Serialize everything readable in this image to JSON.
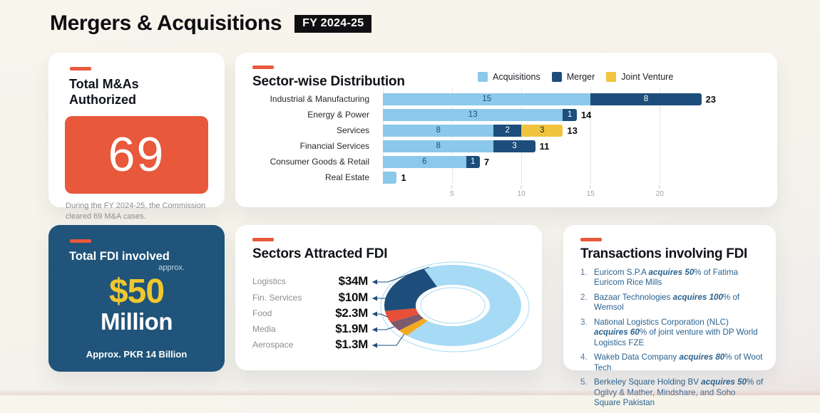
{
  "page": {
    "title": "Mergers & Acquisitions",
    "badge": "FY 2024-25"
  },
  "colors": {
    "accent_orange": "#E8583B",
    "card_blue": "#20547A",
    "money_yellow": "#EFC72F",
    "acquisitions_blue": "#8BC8EB",
    "merger_navy": "#1D4E7B",
    "joint_venture_yellow": "#F0C43C",
    "donut_light_blue": "#A7DAF5",
    "donut_red": "#E74F38",
    "donut_mauve": "#7D5A6C",
    "donut_yellow": "#F2A922",
    "transactions_text_blue": "#2A628F"
  },
  "total_mas_card": {
    "heading": "Total M&As Authorized",
    "value": "69",
    "caption": "During the FY 2024-25, the Commission cleared 69 M&A cases."
  },
  "sector_card": {
    "title": "Sector-wise Distribution"
  },
  "fdi_card": {
    "heading": "Total FDI involved",
    "approx_label": "approx.",
    "amount": "$50",
    "amount_unit": "Million",
    "footnote": "Approx. PKR 14 Billion"
  },
  "fdi_sectors_card": {
    "title": "Sectors Attracted FDI"
  },
  "transactions_card": {
    "title": "Transactions involving FDI",
    "items": [
      [
        {
          "t": "Euricom S.P.A ",
          "b": false
        },
        {
          "t": "acquires 50",
          "b": true
        },
        {
          "t": "% of Fatima Euricom Rice Mills",
          "b": false
        }
      ],
      [
        {
          "t": "Bazaar Technologies ",
          "b": false
        },
        {
          "t": "acquires 100",
          "b": true
        },
        {
          "t": "% of Wemsol",
          "b": false
        }
      ],
      [
        {
          "t": "National Logistics Corporation (NLC) ",
          "b": false
        },
        {
          "t": "acquires 60",
          "b": true
        },
        {
          "t": "% of joint venture with DP World Logistics FZE",
          "b": false
        }
      ],
      [
        {
          "t": "Wakeb Data Company ",
          "b": false
        },
        {
          "t": "acquires 80",
          "b": true
        },
        {
          "t": "% of Woot Tech",
          "b": false
        }
      ],
      [
        {
          "t": "Berkeley Square Holding BV ",
          "b": false
        },
        {
          "t": "acquires 50",
          "b": true
        },
        {
          "t": "% of Ogilvy & Mather, Mindshare, and Soho Square Pakistan",
          "b": false
        }
      ]
    ]
  },
  "chart_data": [
    {
      "type": "bar",
      "orientation": "horizontal",
      "title": "Sector-wise Distribution",
      "categories": [
        "Industrial & Manufacturing",
        "Energy & Power",
        "Services",
        "Financial Services",
        "Consumer Goods & Retail",
        "Real Estate"
      ],
      "series": [
        {
          "name": "Acquisitions",
          "color": "#8BC8EB",
          "label_color": "#1D4E7B",
          "values": [
            15,
            13,
            8,
            8,
            6,
            1
          ]
        },
        {
          "name": "Merger",
          "color": "#1D4E7B",
          "label_color": "#FFFFFF",
          "values": [
            8,
            1,
            2,
            3,
            1,
            0
          ]
        },
        {
          "name": "Joint Venture",
          "color": "#F0C43C",
          "label_color": "#1A2430",
          "values": [
            0,
            0,
            3,
            0,
            0,
            0
          ]
        }
      ],
      "segment_labels": [
        [
          "15",
          "8",
          null
        ],
        [
          "13",
          "1",
          null
        ],
        [
          "8",
          "2",
          "3"
        ],
        [
          "8",
          "3",
          null
        ],
        [
          "6",
          "1",
          null
        ],
        [
          null,
          null,
          null
        ]
      ],
      "totals": [
        23,
        14,
        13,
        11,
        7,
        1
      ],
      "xlim": [
        0,
        24
      ],
      "xticks": [
        5,
        10,
        15,
        20
      ],
      "grid": "vertical",
      "legend_position": "top"
    },
    {
      "type": "pie",
      "subtype": "donut",
      "title": "Sectors Attracted FDI",
      "labels": [
        "Logistics",
        "Fin. Services",
        "Food",
        "Media",
        "Aerospace"
      ],
      "values": [
        34,
        10,
        2.3,
        1.9,
        1.3
      ],
      "display_values": [
        "$34M",
        "$10M",
        "$2.3M",
        "$1.9M",
        "$1.3M"
      ],
      "slices_clockwise": [
        {
          "label": "Logistics",
          "value": 34,
          "color": "#A7DAF5"
        },
        {
          "label": "Aerospace",
          "value": 1.3,
          "color": "#F2A922"
        },
        {
          "label": "Media",
          "value": 1.9,
          "color": "#7D5A6C"
        },
        {
          "label": "Food",
          "value": 2.3,
          "color": "#E74F38"
        },
        {
          "label": "Fin. Services",
          "value": 10,
          "color": "#1D4E7B"
        }
      ],
      "start_angle_deg": 335,
      "legend_position": "none"
    }
  ]
}
